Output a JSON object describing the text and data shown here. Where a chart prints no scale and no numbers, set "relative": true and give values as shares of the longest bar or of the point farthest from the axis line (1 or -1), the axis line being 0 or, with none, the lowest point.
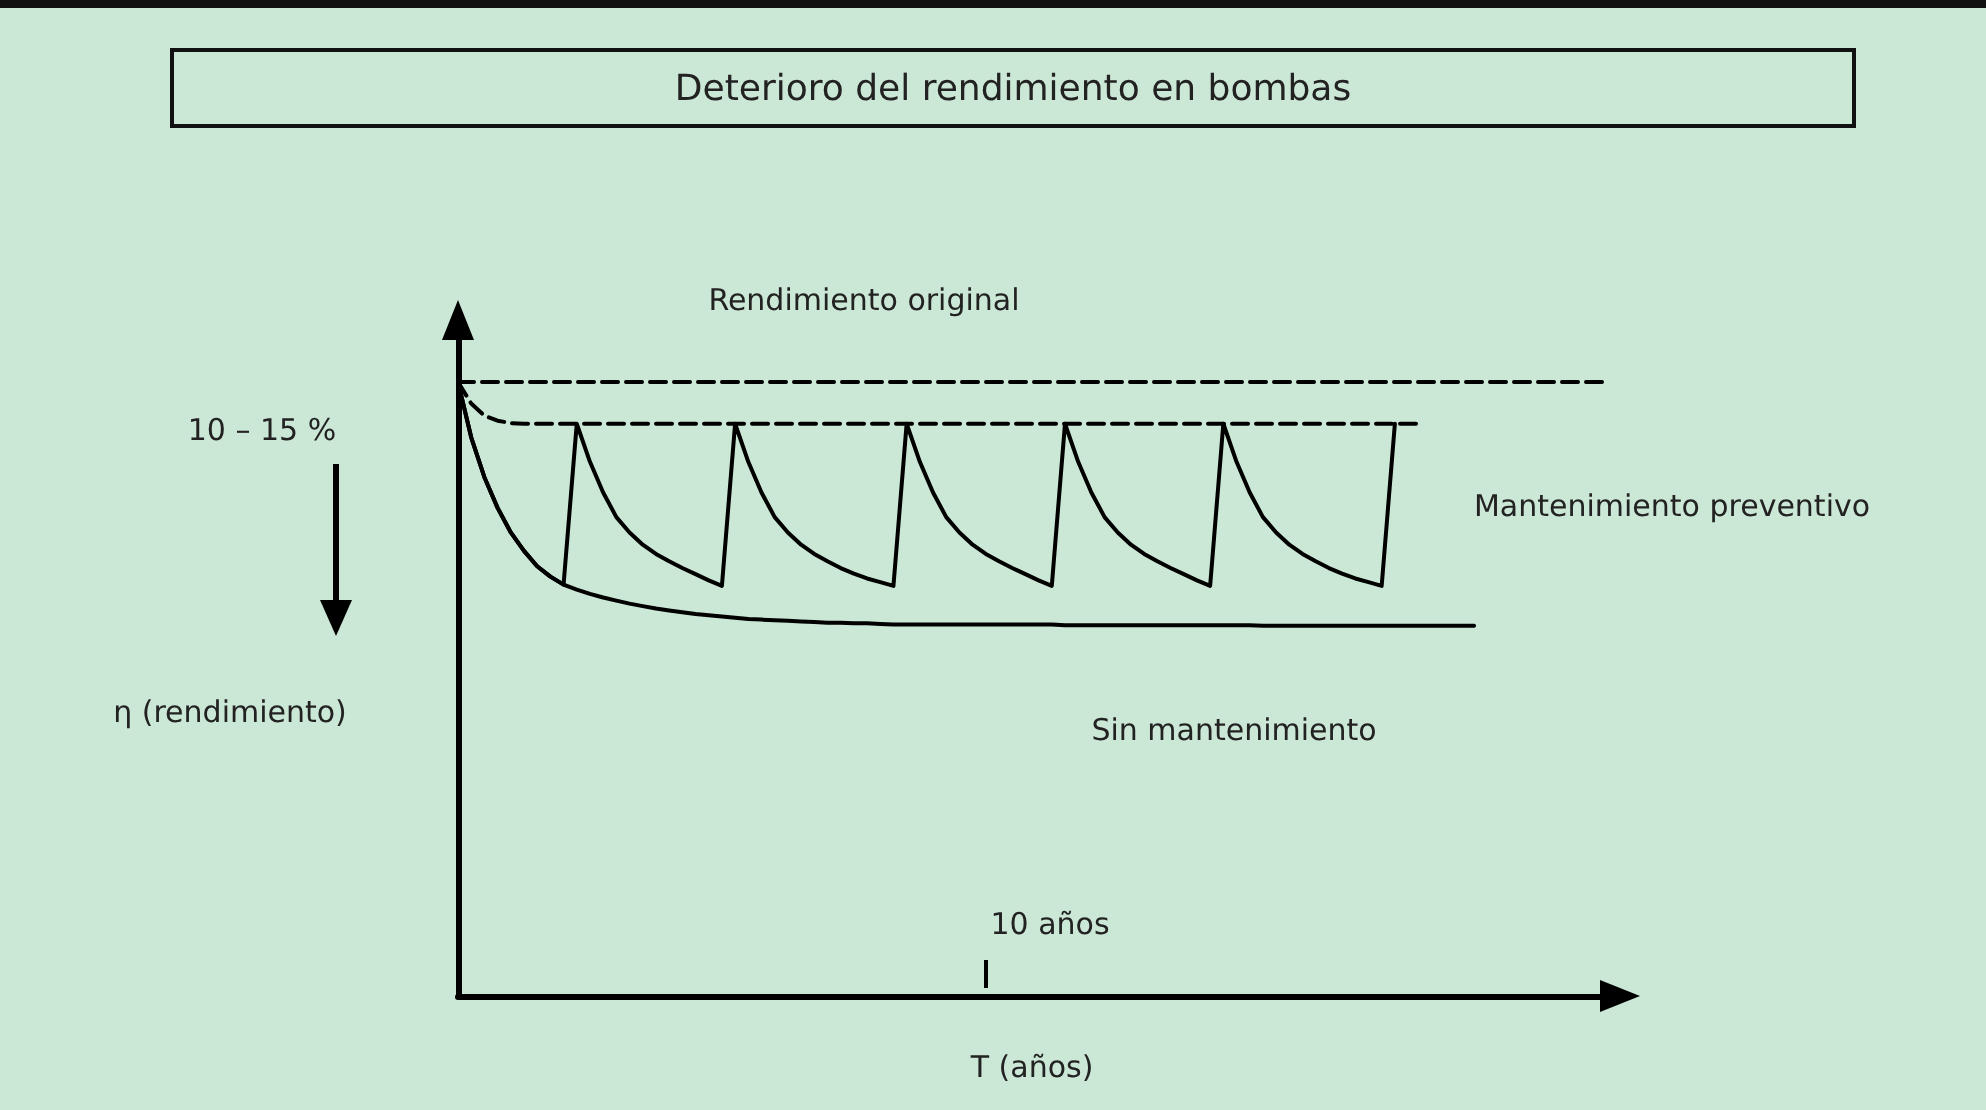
{
  "chart_data": {
    "type": "line",
    "title": "Deterioro del rendimiento en bombas",
    "xlabel": "T (años)",
    "ylabel": "η (rendimiento)",
    "relative": true,
    "marker": "none",
    "categories": [
      null,
      null,
      null,
      null,
      null,
      null,
      null,
      null,
      null,
      null,
      null,
      null,
      null,
      null,
      null,
      null,
      null,
      null,
      null,
      null,
      null,
      null,
      null,
      null,
      null,
      null,
      null,
      null,
      null,
      null,
      null,
      null,
      null,
      null,
      null,
      null,
      null,
      null,
      null,
      null,
      null,
      null,
      null,
      null,
      null,
      null,
      null,
      null,
      null,
      null,
      null,
      null,
      null,
      null,
      null,
      null,
      null,
      null,
      null,
      null,
      null,
      null,
      null,
      null,
      null,
      null,
      null,
      null,
      null,
      null,
      null,
      null,
      null,
      null,
      null,
      null,
      null,
      null,
      null,
      null,
      null,
      null,
      null,
      null,
      null,
      null,
      null,
      null
    ],
    "annotations": [
      "Rendimiento original",
      "Mantenimiento preventivo",
      "Sin mantenimiento",
      "10 – 15 %",
      "10 años"
    ],
    "series": [
      {
        "color": "#000000",
        "line_style": "dashed",
        "values": [
          1,
          1,
          1,
          1,
          1,
          1,
          1,
          1,
          1,
          1,
          1,
          1,
          1,
          1,
          1,
          1,
          1,
          1,
          1,
          1,
          1,
          1,
          1,
          1,
          1,
          1,
          1,
          1,
          1,
          1,
          1,
          1,
          1,
          1,
          1,
          1,
          1,
          1,
          1,
          1,
          1,
          1,
          1,
          1,
          1,
          1,
          1,
          1,
          1,
          1,
          1,
          1,
          1,
          1,
          1,
          1,
          1,
          1,
          1,
          1,
          1,
          1,
          1,
          1,
          1,
          1,
          1,
          1,
          1,
          1,
          1,
          1,
          1,
          1,
          1,
          1,
          1,
          1,
          1,
          1,
          1,
          1,
          1,
          1,
          1,
          1,
          1,
          1
        ]
      },
      {
        "color": "#000000",
        "line_style": "dashed",
        "values": [
          1,
          0.965,
          0.945,
          0.937,
          0.933,
          0.932,
          0.932,
          0.932,
          0.932,
          0.932,
          0.932,
          0.932,
          0.932,
          0.932,
          0.932,
          0.932,
          0.932,
          0.932,
          0.932,
          0.932,
          0.932,
          0.932,
          0.932,
          0.932,
          0.932,
          0.932,
          0.932,
          0.932,
          0.932,
          0.932,
          0.932,
          0.932,
          0.932,
          0.932,
          0.932,
          0.932,
          0.932,
          0.932,
          0.932,
          0.932,
          0.932,
          0.932,
          0.932,
          0.932,
          0.932,
          0.932,
          0.932,
          0.932,
          0.932,
          0.932,
          0.932,
          0.932,
          0.932,
          0.932,
          0.932,
          0.932,
          0.932,
          0.932,
          0.932,
          0.932,
          0.932,
          0.932,
          0.932,
          0.932,
          0.932,
          0.932,
          0.932,
          0.932,
          0.932,
          0.932,
          0.932,
          0.932,
          0.932,
          0.932,
          null,
          null,
          null,
          null,
          null,
          null,
          null,
          null,
          null,
          null,
          null,
          null,
          null,
          null
        ]
      },
      {
        "color": "#000000",
        "line_style": "solid",
        "values": [
          1,
          0.91,
          0.845,
          0.795,
          0.755,
          0.725,
          0.7,
          0.683,
          0.67,
          0.932,
          0.87,
          0.82,
          0.78,
          0.755,
          0.735,
          0.72,
          0.708,
          0.697,
          0.687,
          0.677,
          0.668,
          0.932,
          0.87,
          0.82,
          0.78,
          0.755,
          0.735,
          0.72,
          0.708,
          0.697,
          0.688,
          0.68,
          0.674,
          0.668,
          0.932,
          0.87,
          0.82,
          0.78,
          0.755,
          0.735,
          0.72,
          0.708,
          0.697,
          0.687,
          0.677,
          0.668,
          0.932,
          0.87,
          0.82,
          0.78,
          0.755,
          0.735,
          0.72,
          0.708,
          0.697,
          0.687,
          0.677,
          0.668,
          0.932,
          0.87,
          0.82,
          0.78,
          0.755,
          0.735,
          0.72,
          0.708,
          0.697,
          0.688,
          0.68,
          0.674,
          0.668,
          0.932,
          null,
          null,
          null,
          null,
          null,
          null,
          null,
          null,
          null,
          null,
          null,
          null,
          null,
          null,
          null,
          null
        ]
      },
      {
        "color": "#000000",
        "line_style": "solid",
        "values": [
          1,
          0.91,
          0.845,
          0.795,
          0.755,
          0.725,
          0.7,
          0.683,
          0.67,
          0.662,
          0.655,
          0.649,
          0.644,
          0.639,
          0.635,
          0.631,
          0.628,
          0.625,
          0.622,
          0.62,
          0.618,
          0.616,
          0.614,
          0.613,
          0.612,
          0.611,
          0.61,
          0.609,
          0.608,
          0.608,
          0.607,
          0.607,
          0.606,
          0.605,
          0.605,
          0.605,
          0.605,
          0.605,
          0.605,
          0.605,
          0.605,
          0.605,
          0.605,
          0.605,
          0.605,
          0.605,
          0.604,
          0.604,
          0.604,
          0.604,
          0.604,
          0.604,
          0.604,
          0.604,
          0.604,
          0.604,
          0.604,
          0.604,
          0.604,
          0.604,
          0.604,
          0.603,
          0.603,
          0.603,
          0.603,
          0.603,
          0.603,
          0.603,
          0.603,
          0.603,
          0.603,
          0.603,
          0.603,
          0.603,
          0.603,
          0.603,
          0.603,
          0.603,
          null,
          null,
          null,
          null,
          null,
          null,
          null,
          null,
          null,
          null
        ]
      }
    ]
  }
}
